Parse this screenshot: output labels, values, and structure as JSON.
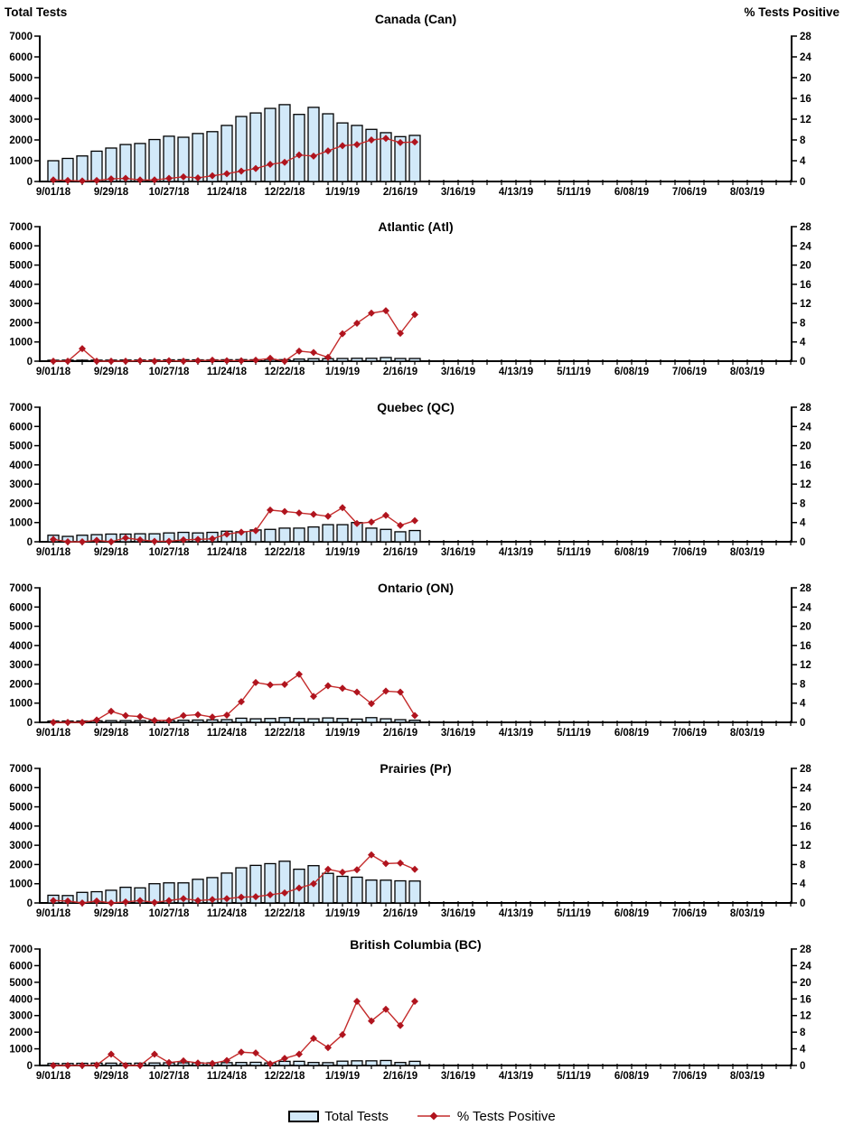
{
  "page": {
    "left_axis_header": "Total Tests",
    "right_axis_header": "% Tests Positive"
  },
  "colors": {
    "bar_fill": "#D2E9F9",
    "bar_border": "#000000",
    "line": "#C42B2B",
    "marker": "#B0141E",
    "axis": "#000000",
    "text": "#000000"
  },
  "axes": {
    "left_tick_labels": [
      "0",
      "1000",
      "2000",
      "3000",
      "4000",
      "5000",
      "6000",
      "7000"
    ],
    "right_tick_labels": [
      "0",
      "4",
      "8",
      "12",
      "16",
      "20",
      "24",
      "28"
    ],
    "x_tick_labels": [
      "9/01/18",
      "9/29/18",
      "10/27/18",
      "11/24/18",
      "12/22/18",
      "1/19/19",
      "2/16/19",
      "3/16/19",
      "4/13/19",
      "5/11/19",
      "6/08/19",
      "7/06/19",
      "8/03/19"
    ],
    "weeks_total": 52,
    "label_every_n_weeks": 4,
    "left_ylim": [
      0,
      7000
    ],
    "right_ylim": [
      0,
      28
    ],
    "grid": "off",
    "legend_position": "bottom-center"
  },
  "legend": {
    "bar_label": "Total Tests",
    "line_label": "% Tests Positive"
  },
  "chart_data": [
    {
      "type": "bar+line",
      "title": "Canada (Can)",
      "categories": [
        "9/01/18",
        "9/08/18",
        "9/15/18",
        "9/22/18",
        "9/29/18",
        "10/06/18",
        "10/13/18",
        "10/20/18",
        "10/27/18",
        "11/03/18",
        "11/10/18",
        "11/17/18",
        "11/24/18",
        "12/01/18",
        "12/08/18",
        "12/15/18",
        "12/22/18",
        "12/29/18",
        "1/05/19",
        "1/12/19",
        "1/19/19",
        "1/26/19",
        "2/02/19",
        "2/09/19",
        "2/16/19",
        "2/23/19"
      ],
      "series": [
        {
          "name": "Total Tests",
          "axis": "left",
          "values": [
            1000,
            1110,
            1230,
            1460,
            1610,
            1780,
            1830,
            2020,
            2180,
            2130,
            2310,
            2400,
            2700,
            3130,
            3300,
            3520,
            3700,
            3230,
            3570,
            3260,
            2820,
            2700,
            2510,
            2350,
            2160,
            2220
          ]
        },
        {
          "name": "% Tests Positive",
          "axis": "right",
          "values": [
            0.3,
            0.2,
            0.1,
            0.2,
            0.5,
            0.6,
            0.3,
            0.3,
            0.6,
            0.9,
            0.7,
            1.1,
            1.5,
            2.0,
            2.5,
            3.3,
            3.7,
            5.1,
            4.9,
            5.9,
            6.9,
            7.1,
            8.0,
            8.3,
            7.5,
            7.6
          ]
        }
      ]
    },
    {
      "type": "bar+line",
      "title": "Atlantic (Atl)",
      "categories": [
        "9/01/18",
        "9/08/18",
        "9/15/18",
        "9/22/18",
        "9/29/18",
        "10/06/18",
        "10/13/18",
        "10/20/18",
        "10/27/18",
        "11/03/18",
        "11/10/18",
        "11/17/18",
        "11/24/18",
        "12/01/18",
        "12/08/18",
        "12/15/18",
        "12/22/18",
        "12/29/18",
        "1/05/19",
        "1/12/19",
        "1/19/19",
        "1/26/19",
        "2/02/19",
        "2/09/19",
        "2/16/19",
        "2/23/19"
      ],
      "series": [
        {
          "name": "Total Tests",
          "axis": "left",
          "values": [
            50,
            55,
            50,
            55,
            55,
            60,
            60,
            60,
            70,
            75,
            70,
            70,
            75,
            80,
            75,
            90,
            80,
            110,
            130,
            130,
            140,
            150,
            150,
            190,
            140,
            140
          ]
        },
        {
          "name": "% Tests Positive",
          "axis": "right",
          "values": [
            0,
            0,
            2.6,
            0,
            0,
            0,
            0.1,
            0,
            0.1,
            0,
            0.1,
            0.2,
            0.1,
            0.1,
            0.2,
            0.6,
            0,
            2.1,
            1.8,
            0.8,
            5.7,
            7.9,
            10.0,
            10.5,
            5.8,
            9.7
          ]
        }
      ]
    },
    {
      "type": "bar+line",
      "title": "Quebec (QC)",
      "categories": [
        "9/01/18",
        "9/08/18",
        "9/15/18",
        "9/22/18",
        "9/29/18",
        "10/06/18",
        "10/13/18",
        "10/20/18",
        "10/27/18",
        "11/03/18",
        "11/10/18",
        "11/17/18",
        "11/24/18",
        "12/01/18",
        "12/08/18",
        "12/15/18",
        "12/22/18",
        "12/29/18",
        "1/05/19",
        "1/12/19",
        "1/19/19",
        "1/26/19",
        "2/02/19",
        "2/09/19",
        "2/16/19",
        "2/23/19"
      ],
      "series": [
        {
          "name": "Total Tests",
          "axis": "left",
          "values": [
            340,
            280,
            340,
            370,
            400,
            400,
            415,
            415,
            460,
            490,
            460,
            490,
            550,
            520,
            615,
            645,
            710,
            710,
            770,
            890,
            890,
            1000,
            710,
            645,
            520,
            585
          ]
        },
        {
          "name": "% Tests Positive",
          "axis": "right",
          "values": [
            0.5,
            0,
            0,
            0.3,
            0,
            0.8,
            0.4,
            0.1,
            0.1,
            0.4,
            0.5,
            0.6,
            1.6,
            2.0,
            2.3,
            6.6,
            6.3,
            6.0,
            5.7,
            5.3,
            7.1,
            3.8,
            4.1,
            5.5,
            3.4,
            4.4
          ]
        }
      ]
    },
    {
      "type": "bar+line",
      "title": "Ontario (ON)",
      "categories": [
        "9/01/18",
        "9/08/18",
        "9/15/18",
        "9/22/18",
        "9/29/18",
        "10/06/18",
        "10/13/18",
        "10/20/18",
        "10/27/18",
        "11/03/18",
        "11/10/18",
        "11/17/18",
        "11/24/18",
        "12/01/18",
        "12/08/18",
        "12/15/18",
        "12/22/18",
        "12/29/18",
        "1/05/19",
        "1/12/19",
        "1/19/19",
        "1/26/19",
        "2/02/19",
        "2/09/19",
        "2/16/19",
        "2/23/19"
      ],
      "series": [
        {
          "name": "Total Tests",
          "axis": "left",
          "values": [
            70,
            70,
            70,
            80,
            90,
            90,
            90,
            90,
            100,
            110,
            120,
            130,
            140,
            215,
            185,
            200,
            245,
            200,
            185,
            230,
            200,
            170,
            245,
            185,
            140,
            110
          ]
        },
        {
          "name": "% Tests Positive",
          "axis": "right",
          "values": [
            0,
            0,
            0,
            0.5,
            2.3,
            1.4,
            1.2,
            0.4,
            0.4,
            1.4,
            1.6,
            1.1,
            1.5,
            4.3,
            8.3,
            7.8,
            7.9,
            10.0,
            5.4,
            7.6,
            7.1,
            6.3,
            3.9,
            6.5,
            6.3,
            1.4
          ]
        }
      ]
    },
    {
      "type": "bar+line",
      "title": "Prairies (Pr)",
      "categories": [
        "9/01/18",
        "9/08/18",
        "9/15/18",
        "9/22/18",
        "9/29/18",
        "10/06/18",
        "10/13/18",
        "10/20/18",
        "10/27/18",
        "11/03/18",
        "11/10/18",
        "11/17/18",
        "11/24/18",
        "12/01/18",
        "12/08/18",
        "12/15/18",
        "12/22/18",
        "12/29/18",
        "1/05/19",
        "1/12/19",
        "1/19/19",
        "1/26/19",
        "2/02/19",
        "2/09/19",
        "2/16/19",
        "2/23/19"
      ],
      "series": [
        {
          "name": "Total Tests",
          "axis": "left",
          "values": [
            400,
            385,
            550,
            585,
            660,
            815,
            785,
            1000,
            1045,
            1045,
            1230,
            1320,
            1555,
            1830,
            1955,
            2045,
            2170,
            1755,
            1940,
            1540,
            1385,
            1340,
            1190,
            1185,
            1150,
            1140
          ]
        },
        {
          "name": "% Tests Positive",
          "axis": "right",
          "values": [
            0.5,
            0.4,
            0,
            0.4,
            0,
            0.2,
            0.5,
            0.1,
            0.5,
            0.9,
            0.5,
            0.7,
            0.9,
            1.2,
            1.3,
            1.7,
            2.1,
            3.1,
            4.0,
            7.0,
            6.4,
            6.9,
            10.0,
            8.2,
            8.3,
            7.0
          ]
        }
      ]
    },
    {
      "type": "bar+line",
      "title": "British Columbia (BC)",
      "categories": [
        "9/01/18",
        "9/08/18",
        "9/15/18",
        "9/22/18",
        "9/29/18",
        "10/06/18",
        "10/13/18",
        "10/20/18",
        "10/27/18",
        "11/03/18",
        "11/10/18",
        "11/17/18",
        "11/24/18",
        "12/01/18",
        "12/08/18",
        "12/15/18",
        "12/22/18",
        "12/29/18",
        "1/05/19",
        "1/12/19",
        "1/19/19",
        "1/26/19",
        "2/02/19",
        "2/09/19",
        "2/16/19",
        "2/23/19"
      ],
      "series": [
        {
          "name": "Total Tests",
          "axis": "left",
          "values": [
            120,
            120,
            130,
            140,
            140,
            130,
            140,
            150,
            160,
            160,
            160,
            160,
            170,
            180,
            190,
            150,
            250,
            250,
            180,
            170,
            260,
            280,
            280,
            300,
            180,
            250
          ]
        },
        {
          "name": "% Tests Positive",
          "axis": "right",
          "values": [
            0,
            0,
            0,
            0.1,
            2.7,
            0,
            0,
            2.7,
            0.7,
            1.1,
            0.6,
            0.5,
            1.2,
            3.2,
            3.0,
            0.4,
            1.7,
            2.7,
            6.5,
            4.3,
            7.4,
            15.4,
            10.7,
            13.5,
            9.6,
            15.4
          ]
        }
      ]
    }
  ]
}
